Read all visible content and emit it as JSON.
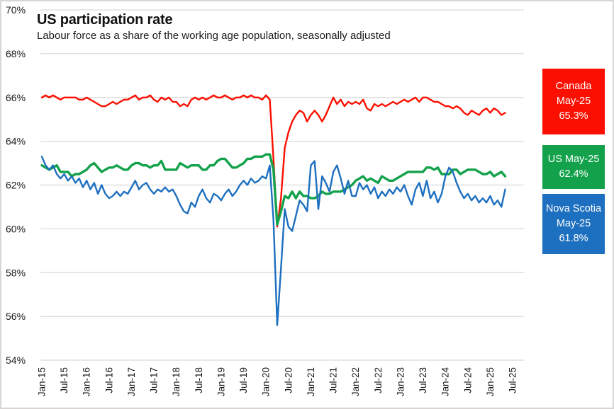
{
  "header": {
    "title": "US participation rate",
    "subtitle": "Labour force as a share of the working age population, seasonally adjusted"
  },
  "colors": {
    "canada": "#fb0f00",
    "us": "#13a24b",
    "nova_scotia": "#1d6fbf",
    "gridline": "#d9d9d9",
    "tick_text": "#1a1a1a"
  },
  "chart_data": {
    "type": "line",
    "title": "US participation rate",
    "subtitle": "Labour force as a share of the working age population, seasonally adjusted",
    "x_frequency": "monthly",
    "x_start": "Jan-2015",
    "x_end": "May-2025",
    "x_tick_labels": [
      "Jan-15",
      "Jul-15",
      "Jan-16",
      "Jul-16",
      "Jan-17",
      "Jul-17",
      "Jan-18",
      "Jul-18",
      "Jan-19",
      "Jul-19",
      "Jan-20",
      "Jul-20",
      "Jan-21",
      "Jul-21",
      "Jan-22",
      "Jul-22",
      "Jan-23",
      "Jul-23",
      "Jan-24",
      "Jul-24",
      "Jan-25",
      "Jul-25"
    ],
    "ylim": [
      54,
      70
    ],
    "y_ticks": [
      70,
      68,
      66,
      64,
      62,
      60,
      58,
      56,
      54
    ],
    "y_tick_suffix": "%",
    "grid": "horizontal",
    "legend_position": "right",
    "series": [
      {
        "name": "Canada",
        "color": "#fb0f00",
        "values": [
          66.0,
          66.1,
          66.0,
          66.1,
          66.0,
          65.9,
          66.0,
          66.0,
          66.0,
          66.0,
          65.9,
          65.9,
          66.0,
          65.9,
          65.8,
          65.7,
          65.6,
          65.6,
          65.7,
          65.8,
          65.7,
          65.8,
          65.9,
          65.9,
          66.0,
          66.1,
          65.9,
          66.0,
          66.0,
          66.1,
          65.9,
          65.8,
          66.0,
          65.9,
          66.0,
          65.8,
          65.8,
          65.6,
          65.7,
          65.6,
          65.9,
          66.0,
          65.9,
          66.0,
          65.9,
          66.0,
          66.1,
          66.0,
          66.0,
          66.1,
          66.0,
          65.9,
          66.0,
          66.0,
          66.1,
          66.0,
          66.1,
          66.0,
          66.0,
          65.9,
          66.1,
          65.9,
          63.2,
          60.1,
          61.4,
          63.7,
          64.4,
          64.9,
          65.2,
          65.4,
          65.3,
          64.9,
          65.2,
          65.4,
          65.2,
          64.9,
          65.2,
          65.6,
          66.0,
          65.7,
          65.9,
          65.6,
          65.8,
          65.7,
          65.8,
          65.7,
          65.9,
          65.5,
          65.4,
          65.7,
          65.6,
          65.7,
          65.6,
          65.7,
          65.8,
          65.7,
          65.8,
          65.9,
          65.8,
          65.9,
          66.0,
          65.8,
          66.0,
          66.0,
          65.9,
          65.8,
          65.8,
          65.7,
          65.6,
          65.6,
          65.5,
          65.6,
          65.5,
          65.3,
          65.2,
          65.4,
          65.3,
          65.2,
          65.4,
          65.5,
          65.3,
          65.5,
          65.4,
          65.2,
          65.3
        ]
      },
      {
        "name": "US",
        "color": "#13a24b",
        "values": [
          62.9,
          62.8,
          62.7,
          62.8,
          62.9,
          62.6,
          62.6,
          62.6,
          62.4,
          62.5,
          62.5,
          62.6,
          62.7,
          62.9,
          63.0,
          62.8,
          62.6,
          62.7,
          62.8,
          62.8,
          62.9,
          62.8,
          62.7,
          62.7,
          62.9,
          63.0,
          63.0,
          62.9,
          62.9,
          62.8,
          62.9,
          62.9,
          63.1,
          62.7,
          62.7,
          62.7,
          62.7,
          63.0,
          62.9,
          62.8,
          62.9,
          62.9,
          62.9,
          62.7,
          62.7,
          62.9,
          62.9,
          63.1,
          63.2,
          63.2,
          63.0,
          62.8,
          62.8,
          62.9,
          63.0,
          63.2,
          63.2,
          63.3,
          63.3,
          63.3,
          63.4,
          63.4,
          62.7,
          60.2,
          60.8,
          61.5,
          61.4,
          61.7,
          61.4,
          61.7,
          61.5,
          61.5,
          61.4,
          61.4,
          61.5,
          61.7,
          61.6,
          61.6,
          61.7,
          61.7,
          61.7,
          61.8,
          61.9,
          62.0,
          62.2,
          62.3,
          62.4,
          62.2,
          62.3,
          62.2,
          62.1,
          62.4,
          62.3,
          62.2,
          62.2,
          62.3,
          62.4,
          62.5,
          62.6,
          62.6,
          62.6,
          62.6,
          62.6,
          62.8,
          62.8,
          62.7,
          62.8,
          62.5,
          62.5,
          62.5,
          62.7,
          62.7,
          62.5,
          62.6,
          62.7,
          62.7,
          62.7,
          62.6,
          62.5,
          62.5,
          62.6,
          62.4,
          62.5,
          62.6,
          62.4
        ]
      },
      {
        "name": "Nova Scotia",
        "color": "#1d6fbf",
        "values": [
          63.3,
          62.9,
          62.7,
          62.9,
          62.5,
          62.3,
          62.5,
          62.2,
          62.4,
          62.1,
          62.3,
          61.9,
          62.2,
          61.8,
          62.1,
          61.6,
          62.0,
          61.6,
          61.4,
          61.5,
          61.7,
          61.5,
          61.7,
          61.6,
          61.9,
          62.2,
          61.8,
          62.0,
          62.1,
          61.8,
          61.6,
          61.8,
          61.7,
          61.9,
          61.7,
          61.8,
          61.5,
          61.1,
          60.8,
          60.7,
          61.2,
          61.0,
          61.5,
          61.8,
          61.4,
          61.2,
          61.6,
          61.5,
          61.3,
          61.6,
          61.8,
          61.5,
          61.7,
          62.0,
          62.2,
          62.0,
          62.3,
          62.1,
          62.2,
          62.4,
          62.3,
          62.9,
          60.4,
          55.6,
          58.2,
          60.9,
          60.1,
          59.9,
          60.6,
          61.3,
          61.1,
          60.8,
          62.9,
          63.1,
          60.9,
          62.4,
          62.1,
          61.7,
          62.6,
          62.9,
          62.3,
          61.6,
          62.2,
          61.5,
          61.5,
          62.1,
          61.8,
          62.0,
          61.6,
          61.9,
          61.4,
          61.7,
          61.5,
          61.8,
          61.6,
          61.9,
          61.7,
          62.0,
          61.5,
          61.1,
          61.8,
          62.1,
          61.5,
          62.2,
          61.4,
          61.7,
          61.2,
          61.6,
          62.4,
          62.8,
          62.6,
          62.1,
          61.7,
          61.4,
          61.6,
          61.3,
          61.5,
          61.2,
          61.4,
          61.2,
          61.5,
          61.1,
          61.3,
          61.0,
          61.8
        ]
      }
    ]
  },
  "legend": [
    {
      "lines": [
        "Canada",
        "May-25",
        "65.3%"
      ],
      "color": "#fb0f00"
    },
    {
      "lines": [
        "US May-25",
        "62.4%"
      ],
      "color": "#13a24b"
    },
    {
      "lines": [
        "Nova Scotia",
        "May-25",
        "61.8%"
      ],
      "color": "#1d6fbf"
    }
  ]
}
